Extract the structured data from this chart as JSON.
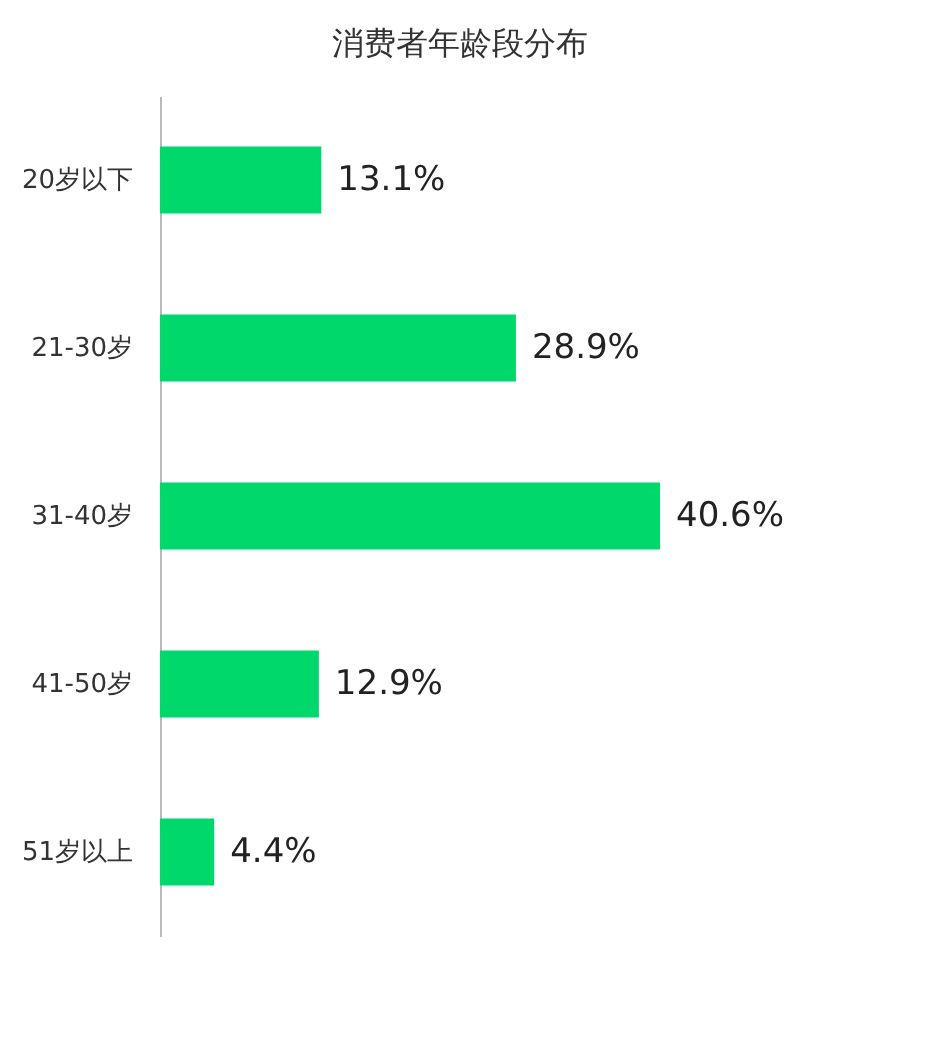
{
  "chart_data": {
    "type": "bar",
    "orientation": "horizontal",
    "title": "消费者年龄段分布",
    "categories": [
      "20岁以下",
      "21-30岁",
      "31-40岁",
      "41-50岁",
      "51岁以上"
    ],
    "values": [
      13.1,
      28.9,
      40.6,
      12.9,
      4.4
    ],
    "value_labels": [
      "13.1%",
      "28.9%",
      "40.6%",
      "12.9%",
      "4.4%"
    ],
    "color": "#00d86c"
  }
}
